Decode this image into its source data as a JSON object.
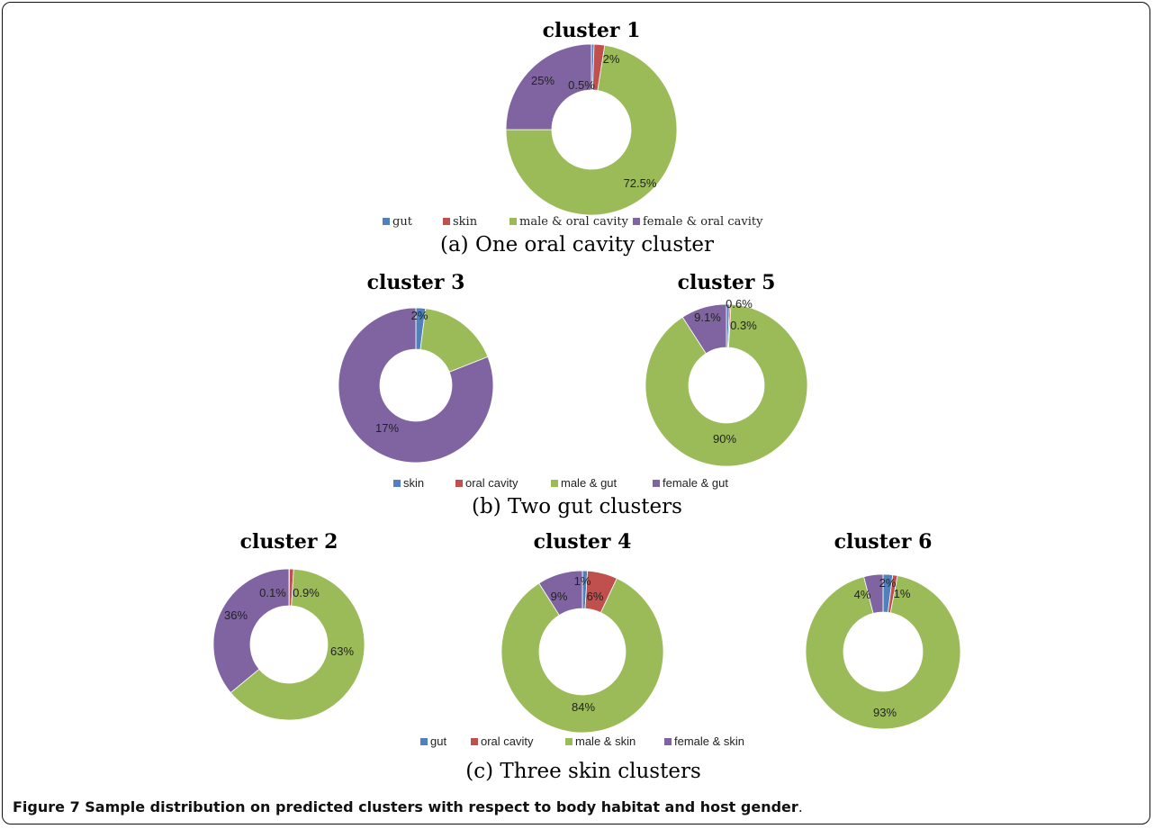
{
  "colors": {
    "blue": "#4f81bd",
    "red": "#c0504d",
    "green": "#9bbb59",
    "purple": "#8064a2"
  },
  "figure": {
    "label": "Figure 7",
    "caption": "Sample distribution on predicted clusters with respect to body habitat and host gender",
    "caption_end": "."
  },
  "chart_data": [
    {
      "type": "pie",
      "group": "a",
      "title": "cluster 1",
      "labels": [
        "gut",
        "skin",
        "male & oral cavity",
        "female & oral cavity"
      ],
      "values": [
        0.5,
        2,
        72.5,
        25
      ],
      "value_labels": [
        "0.5%",
        "2%",
        "72.5%",
        "25%"
      ]
    },
    {
      "type": "pie",
      "group": "b",
      "title": "cluster 3",
      "labels": [
        "skin",
        "oral cavity",
        "male & gut",
        "female & gut"
      ],
      "values": [
        2,
        0,
        17,
        81
      ],
      "value_labels": [
        "2%",
        "",
        "17%",
        "81%"
      ]
    },
    {
      "type": "pie",
      "group": "b",
      "title": "cluster 5",
      "labels": [
        "skin",
        "oral cavity",
        "male & gut",
        "female & gut"
      ],
      "values": [
        0.6,
        0.3,
        90,
        9.1
      ],
      "value_labels": [
        "0.6%",
        "0.3%",
        "90%",
        "9.1%"
      ]
    },
    {
      "type": "pie",
      "group": "c",
      "title": "cluster 2",
      "labels": [
        "gut",
        "oral cavity",
        "male & skin",
        "female & skin"
      ],
      "values": [
        0.1,
        0.9,
        63,
        36
      ],
      "value_labels": [
        "0.1%",
        "0.9%",
        "63%",
        "36%"
      ]
    },
    {
      "type": "pie",
      "group": "c",
      "title": "cluster 4",
      "labels": [
        "gut",
        "oral cavity",
        "male & skin",
        "female & skin"
      ],
      "values": [
        1,
        6,
        84,
        9
      ],
      "value_labels": [
        "1%",
        "6%",
        "84%",
        "9%"
      ]
    },
    {
      "type": "pie",
      "group": "c",
      "title": "cluster 6",
      "labels": [
        "gut",
        "oral cavity",
        "male & skin",
        "female & skin"
      ],
      "values": [
        2,
        1,
        93,
        4
      ],
      "value_labels": [
        "2%",
        "1%",
        "93%",
        "4%"
      ]
    }
  ],
  "panels": [
    {
      "id": "a",
      "caption": "(a) One oral cavity cluster",
      "legend": [
        "gut",
        "skin",
        "male & oral cavity",
        "female & oral cavity"
      ]
    },
    {
      "id": "b",
      "caption": "(b) Two gut clusters",
      "legend": [
        "skin",
        "oral cavity",
        "male & gut",
        "female & gut"
      ]
    },
    {
      "id": "c",
      "caption": "(c) Three skin clusters",
      "legend": [
        "gut",
        "oral cavity",
        "male & skin",
        "female & skin"
      ]
    }
  ]
}
